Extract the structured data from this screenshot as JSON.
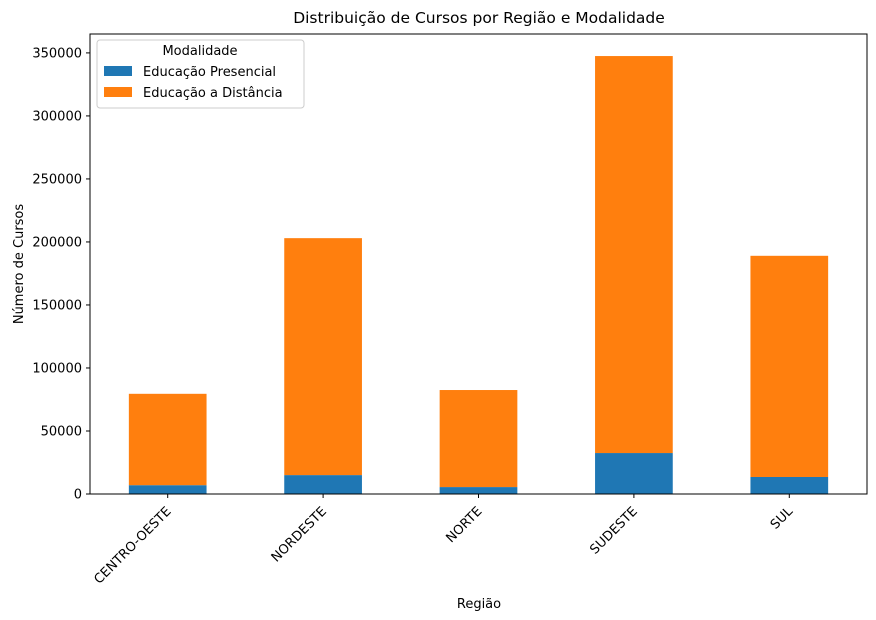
{
  "chart_data": {
    "type": "bar",
    "stacked": true,
    "title": "Distribuição de Cursos por Região e Modalidade",
    "xlabel": "Região",
    "ylabel": "Número de Cursos",
    "categories": [
      "CENTRO-OESTE",
      "NORDESTE",
      "NORTE",
      "SUDESTE",
      "SUL"
    ],
    "series": [
      {
        "name": "Educação Presencial",
        "color": "#1f77b4",
        "values": [
          7000,
          15000,
          5500,
          32500,
          13500
        ]
      },
      {
        "name": "Educação a Distância",
        "color": "#ff7f0e",
        "values": [
          72500,
          188000,
          77000,
          315000,
          175500
        ]
      }
    ],
    "ylim": [
      0,
      365000
    ],
    "yticks": [
      0,
      50000,
      100000,
      150000,
      200000,
      250000,
      300000,
      350000
    ],
    "ytick_labels": [
      "0",
      "50000",
      "100000",
      "150000",
      "200000",
      "250000",
      "300000",
      "350000"
    ],
    "legend": {
      "title": "Modalidade",
      "placement": "top-left"
    },
    "grid": false
  }
}
